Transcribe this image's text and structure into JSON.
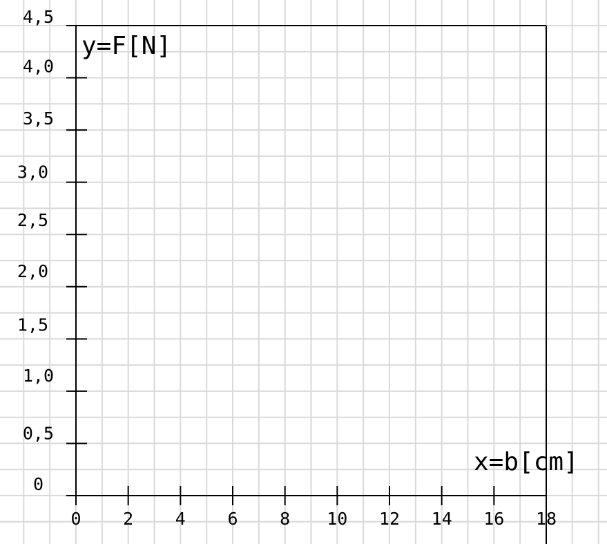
{
  "chart_data": {
    "type": "line",
    "title": "",
    "xlabel": "x=b[cm]",
    "ylabel": "y=F[N]",
    "xlim": [
      0,
      18
    ],
    "ylim": [
      0,
      4.5
    ],
    "x_ticks": [
      "0",
      "2",
      "4",
      "6",
      "8",
      "10",
      "12",
      "14",
      "16",
      "18"
    ],
    "y_ticks": [
      "0",
      "0,5",
      "1,0",
      "1,5",
      "2,0",
      "2,5",
      "3,0",
      "3,5",
      "4,0",
      "4,5"
    ],
    "grid": true,
    "series": []
  }
}
